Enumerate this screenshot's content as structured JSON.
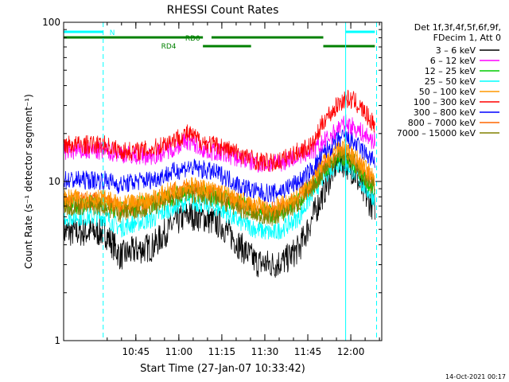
{
  "chart_data": {
    "type": "line",
    "title": "RHESSI Count Rates",
    "xlabel": "Start Time (27-Jan-07 10:33:42)",
    "ylabel": "Count Rate (s⁻¹ detector segment⁻¹)",
    "yscale": "log",
    "ylim": [
      1,
      100
    ],
    "y_ticks": [
      1,
      10,
      100
    ],
    "x_range_minutes": [
      10.33,
      12.12
    ],
    "x_unit": "hours-of-day",
    "x_ticks": [
      "10:45",
      "11:00",
      "11:15",
      "11:30",
      "11:45",
      "12:00"
    ],
    "x_tick_values": [
      10.75,
      11.0,
      11.25,
      11.5,
      11.75,
      12.0
    ],
    "grid": false,
    "legend_header": [
      "Det 1f,3f,4f,5f,6f,9f,",
      "FDecim 1, Att 0"
    ],
    "legend_placement": "right",
    "series": [
      {
        "name": "3 – 6 keV",
        "color": "#000000",
        "x": [
          10.57,
          10.66,
          10.75,
          10.85,
          10.95,
          11.05,
          11.15,
          11.25,
          11.35,
          11.45,
          11.55,
          11.62,
          11.7,
          11.78,
          11.85,
          11.9,
          11.93,
          11.97,
          12.02,
          12.07,
          12.13
        ],
        "values": [
          4.8,
          3.4,
          3.7,
          3.9,
          5.2,
          6.2,
          5.9,
          5.3,
          4.0,
          3.1,
          3.0,
          3.2,
          3.8,
          6.0,
          9.0,
          12.0,
          13.5,
          13.0,
          11.5,
          8.5,
          7.0
        ]
      },
      {
        "name": "6 – 12 keV",
        "color": "#ff00ff",
        "x": [
          10.57,
          10.66,
          10.75,
          10.85,
          10.95,
          11.05,
          11.15,
          11.25,
          11.35,
          11.45,
          11.55,
          11.62,
          11.7,
          11.78,
          11.85,
          11.9,
          11.93,
          11.97,
          12.02,
          12.07,
          12.13
        ],
        "values": [
          15.5,
          15.0,
          14.5,
          14.5,
          16.0,
          18.0,
          15.8,
          15.0,
          14.0,
          13.0,
          12.8,
          13.5,
          14.5,
          15.5,
          18.0,
          20.0,
          22.0,
          23.0,
          22.0,
          20.0,
          18.0
        ]
      },
      {
        "name": "12 – 25 keV",
        "color": "#00cc00",
        "x": [
          10.57,
          10.66,
          10.75,
          10.85,
          10.95,
          11.05,
          11.15,
          11.25,
          11.35,
          11.45,
          11.55,
          11.62,
          11.7,
          11.78,
          11.85,
          11.9,
          11.93,
          11.97,
          12.02,
          12.07,
          12.13
        ],
        "values": [
          7.2,
          6.5,
          7.0,
          7.3,
          8.0,
          8.7,
          8.4,
          8.0,
          7.2,
          6.6,
          6.2,
          6.8,
          7.5,
          9.5,
          12.0,
          13.5,
          14.5,
          14.0,
          13.0,
          11.0,
          9.0
        ]
      },
      {
        "name": "25 – 50 keV",
        "color": "#00ffff",
        "x": [
          10.57,
          10.66,
          10.75,
          10.85,
          10.95,
          11.05,
          11.15,
          11.25,
          11.35,
          11.45,
          11.55,
          11.62,
          11.7,
          11.78,
          11.85,
          11.9,
          11.93,
          11.97,
          12.02,
          12.07,
          12.13
        ],
        "values": [
          6.0,
          5.1,
          5.5,
          5.8,
          6.8,
          7.5,
          7.2,
          6.6,
          5.6,
          5.0,
          4.7,
          5.2,
          6.0,
          8.5,
          11.0,
          12.5,
          13.0,
          12.8,
          11.5,
          9.5,
          8.0
        ]
      },
      {
        "name": "50 – 100 keV",
        "color": "#ff9900",
        "x": [
          10.57,
          10.66,
          10.75,
          10.85,
          10.95,
          11.05,
          11.15,
          11.25,
          11.35,
          11.45,
          11.55,
          11.62,
          11.7,
          11.78,
          11.85,
          11.9,
          11.93,
          11.97,
          12.02,
          12.07,
          12.13
        ],
        "values": [
          7.8,
          7.0,
          7.4,
          7.8,
          8.7,
          9.5,
          9.0,
          8.5,
          7.6,
          7.0,
          6.8,
          7.3,
          8.2,
          10.5,
          13.5,
          15.0,
          16.5,
          16.0,
          14.5,
          12.5,
          10.5
        ]
      },
      {
        "name": "100 – 300 keV",
        "color": "#ff0000",
        "x": [
          10.57,
          10.66,
          10.75,
          10.85,
          10.95,
          11.05,
          11.15,
          11.25,
          11.35,
          11.45,
          11.55,
          11.62,
          11.7,
          11.78,
          11.85,
          11.9,
          11.93,
          11.97,
          12.02,
          12.07,
          12.13
        ],
        "values": [
          17.0,
          15.5,
          15.5,
          16.0,
          18.0,
          20.0,
          17.5,
          16.5,
          15.0,
          13.5,
          13.0,
          14.0,
          15.5,
          17.0,
          25.0,
          28.0,
          31.0,
          33.0,
          32.0,
          28.0,
          23.0
        ]
      },
      {
        "name": "300 – 800 keV",
        "color": "#0000ff",
        "x": [
          10.57,
          10.66,
          10.75,
          10.85,
          10.95,
          11.05,
          11.15,
          11.25,
          11.35,
          11.45,
          11.55,
          11.62,
          11.7,
          11.78,
          11.85,
          11.9,
          11.93,
          11.97,
          12.02,
          12.07,
          12.13
        ],
        "values": [
          10.2,
          9.5,
          10.0,
          10.3,
          11.3,
          12.3,
          11.8,
          11.0,
          9.5,
          8.6,
          8.4,
          9.0,
          10.0,
          12.0,
          15.5,
          17.0,
          18.5,
          18.8,
          17.5,
          15.5,
          13.5
        ]
      },
      {
        "name": "800 – 7000 keV",
        "color": "#ff6600",
        "x": [
          10.57,
          10.66,
          10.75,
          10.85,
          10.95,
          11.05,
          11.15,
          11.25,
          11.35,
          11.45,
          11.55,
          11.62,
          11.7,
          11.78,
          11.85,
          11.9,
          11.93,
          11.97,
          12.02,
          12.07,
          12.13
        ],
        "values": [
          7.5,
          6.7,
          7.1,
          7.5,
          8.4,
          9.2,
          8.7,
          8.2,
          7.3,
          6.7,
          6.5,
          7.0,
          7.9,
          10.0,
          13.0,
          14.5,
          15.8,
          15.5,
          14.0,
          12.0,
          10.0
        ]
      },
      {
        "name": "7000 – 15000 keV",
        "color": "#808000",
        "x": [
          10.57,
          10.66,
          10.75,
          10.85,
          10.95,
          11.05,
          11.15,
          11.25,
          11.35,
          11.45,
          11.55,
          11.62,
          11.7,
          11.78,
          11.85,
          11.9,
          11.93,
          11.97,
          12.02,
          12.07,
          12.13
        ],
        "values": [
          7.0,
          6.3,
          6.7,
          7.0,
          7.8,
          8.5,
          8.1,
          7.6,
          6.8,
          6.2,
          6.0,
          6.5,
          7.3,
          9.3,
          12.0,
          13.5,
          14.5,
          14.2,
          13.0,
          11.0,
          9.3
        ]
      }
    ],
    "annotations": {
      "flags": [
        {
          "label": "N",
          "color": "#00ffff",
          "segments": [
            [
              10.33,
              10.56
            ],
            [
              11.97,
              12.14
            ]
          ]
        },
        {
          "label": "RD0",
          "color": "#008000",
          "segments": [
            [
              10.33,
              11.14
            ],
            [
              11.19,
              11.84
            ]
          ]
        },
        {
          "label": "RD4",
          "color": "#008000",
          "segments": [
            [
              11.14,
              11.42
            ],
            [
              11.84,
              12.14
            ]
          ]
        }
      ],
      "vlines": [
        {
          "x": 10.56,
          "color": "#00ffff",
          "style": "dashed"
        },
        {
          "x": 11.97,
          "color": "#00ffff",
          "style": "solid"
        },
        {
          "x": 12.15,
          "color": "#00ffff",
          "style": "dashed"
        }
      ]
    },
    "footer_timestamp": "14-Oct-2021 00:17"
  }
}
